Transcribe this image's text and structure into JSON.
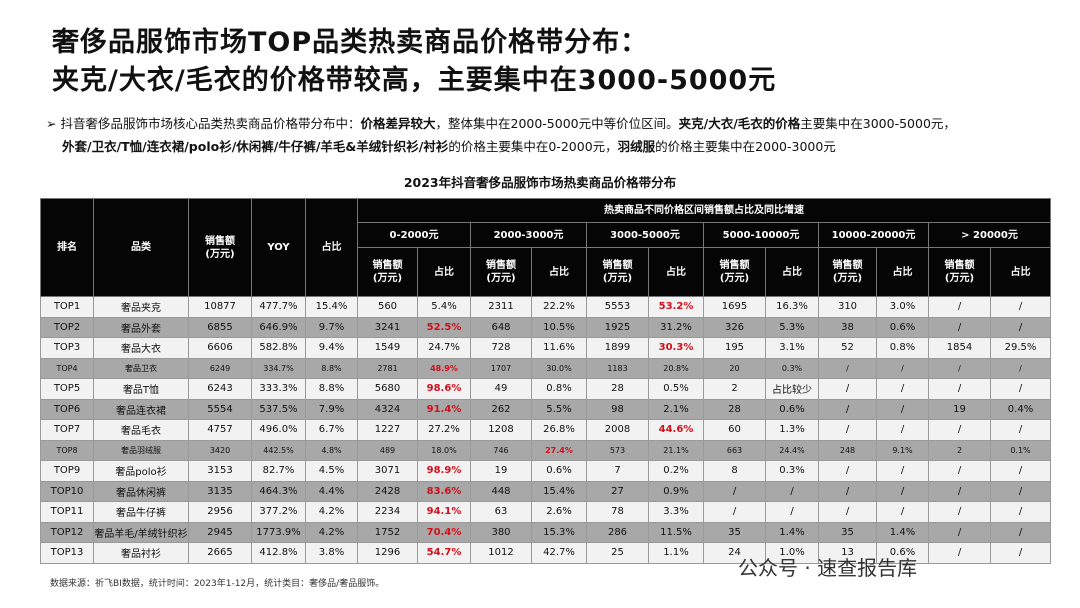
{
  "header": {
    "title_line1": "奢侈品服饰市场TOP品类热卖商品价格带分布：",
    "title_line2": "夹克/大衣/毛衣的价格带较高，主要集中在3000-5000元"
  },
  "summary": {
    "lines": [
      [
        {
          "text": "抖音奢侈品服饰市场核心品类热卖商品价格带分布中：",
          "bold": false
        },
        {
          "text": "价格差异较大",
          "bold": true
        },
        {
          "text": "，整体集中在2000-5000元中等价位区间。",
          "bold": false
        },
        {
          "text": "夹克/大衣/毛衣的价格",
          "bold": true
        },
        {
          "text": "主要集中在3000-5000元，",
          "bold": false
        }
      ],
      [
        {
          "text": "外套/卫衣/T恤/连衣裙/polo衫/休闲裤/牛仔裤/羊毛&羊绒针织衫/衬衫",
          "bold": true
        },
        {
          "text": "的价格主要集中在0-2000元，",
          "bold": false
        },
        {
          "text": "羽绒服",
          "bold": true
        },
        {
          "text": "的价格主要集中在2000-3000元",
          "bold": false
        }
      ]
    ]
  },
  "table": {
    "caption": "2023年抖音奢侈品服饰市场热卖商品价格带分布",
    "headers": {
      "rank": "排名",
      "category": "品类",
      "sales": "销售额\n(万元)",
      "yoy": "YOY",
      "share": "占比",
      "group": "热卖商品不同价格区间销售额占比及同比增速",
      "bands": [
        "0-2000元",
        "2000-3000元",
        "3000-5000元",
        "5000-10000元",
        "10000-20000元",
        "> 20000元"
      ],
      "sub_sales": "销售额\n(万元)",
      "sub_share": "占比"
    },
    "rows": [
      {
        "cells": [
          "TOP1",
          "奢品夹克",
          "10877",
          "477.7%",
          "15.4%",
          "560",
          "5.4%",
          "2311",
          "22.2%",
          "5553",
          "53.2%",
          "1695",
          "16.3%",
          "310",
          "3.0%",
          "/",
          "/"
        ],
        "red": [
          10
        ]
      },
      {
        "cells": [
          "TOP2",
          "奢品外套",
          "6855",
          "646.9%",
          "9.7%",
          "3241",
          "52.5%",
          "648",
          "10.5%",
          "1925",
          "31.2%",
          "326",
          "5.3%",
          "38",
          "0.6%",
          "/",
          "/"
        ],
        "red": [
          6
        ]
      },
      {
        "cells": [
          "TOP3",
          "奢品大衣",
          "6606",
          "582.8%",
          "9.4%",
          "1549",
          "24.7%",
          "728",
          "11.6%",
          "1899",
          "30.3%",
          "195",
          "3.1%",
          "52",
          "0.8%",
          "1854",
          "29.5%"
        ],
        "red": [
          10
        ]
      },
      {
        "cells": [
          "TOP4",
          "奢品卫衣",
          "6249",
          "334.7%",
          "8.8%",
          "2781",
          "48.9%",
          "1707",
          "30.0%",
          "1183",
          "20.8%",
          "20",
          "0.3%",
          "/",
          "/",
          "/",
          "/"
        ],
        "red": [
          6
        ]
      },
      {
        "cells": [
          "TOP5",
          "奢品T恤",
          "6243",
          "333.3%",
          "8.8%",
          "5680",
          "98.6%",
          "49",
          "0.8%",
          "28",
          "0.5%",
          "2",
          "占比较少",
          "/",
          "/",
          "/",
          "/"
        ],
        "red": [
          6
        ]
      },
      {
        "cells": [
          "TOP6",
          "奢品连衣裙",
          "5554",
          "537.5%",
          "7.9%",
          "4324",
          "91.4%",
          "262",
          "5.5%",
          "98",
          "2.1%",
          "28",
          "0.6%",
          "/",
          "/",
          "19",
          "0.4%"
        ],
        "red": [
          6
        ]
      },
      {
        "cells": [
          "TOP7",
          "奢品毛衣",
          "4757",
          "496.0%",
          "6.7%",
          "1227",
          "27.2%",
          "1208",
          "26.8%",
          "2008",
          "44.6%",
          "60",
          "1.3%",
          "/",
          "/",
          "/",
          "/"
        ],
        "red": [
          10
        ]
      },
      {
        "cells": [
          "TOP8",
          "奢品羽绒服",
          "3420",
          "442.5%",
          "4.8%",
          "489",
          "18.0%",
          "746",
          "27.4%",
          "573",
          "21.1%",
          "663",
          "24.4%",
          "248",
          "9.1%",
          "2",
          "0.1%"
        ],
        "red": [
          8
        ]
      },
      {
        "cells": [
          "TOP9",
          "奢品polo衫",
          "3153",
          "82.7%",
          "4.5%",
          "3071",
          "98.9%",
          "19",
          "0.6%",
          "7",
          "0.2%",
          "8",
          "0.3%",
          "/",
          "/",
          "/",
          "/"
        ],
        "red": [
          6
        ]
      },
      {
        "cells": [
          "TOP10",
          "奢品休闲裤",
          "3135",
          "464.3%",
          "4.4%",
          "2428",
          "83.6%",
          "448",
          "15.4%",
          "27",
          "0.9%",
          "/",
          "/",
          "/",
          "/",
          "/",
          "/"
        ],
        "red": [
          6
        ]
      },
      {
        "cells": [
          "TOP11",
          "奢品牛仔裤",
          "2956",
          "377.2%",
          "4.2%",
          "2234",
          "94.1%",
          "63",
          "2.6%",
          "78",
          "3.3%",
          "/",
          "/",
          "/",
          "/",
          "/",
          "/"
        ],
        "red": [
          6
        ]
      },
      {
        "cells": [
          "TOP12",
          "奢品羊毛/羊绒针织衫",
          "2945",
          "1773.9%",
          "4.2%",
          "1752",
          "70.4%",
          "380",
          "15.3%",
          "286",
          "11.5%",
          "35",
          "1.4%",
          "35",
          "1.4%",
          "/",
          "/"
        ],
        "red": [
          6
        ]
      },
      {
        "cells": [
          "TOP13",
          "奢品衬衫",
          "2665",
          "412.8%",
          "3.8%",
          "1296",
          "54.7%",
          "1012",
          "42.7%",
          "25",
          "1.1%",
          "24",
          "1.0%",
          "13",
          "0.6%",
          "/",
          "/"
        ],
        "red": [
          6
        ]
      }
    ]
  },
  "footer": {
    "source": "数据来源：祈飞BI数据，统计时间：2023年1-12月，统计类目：奢侈品/奢品服饰。",
    "watermark": "公众号 · 速查报告库"
  }
}
